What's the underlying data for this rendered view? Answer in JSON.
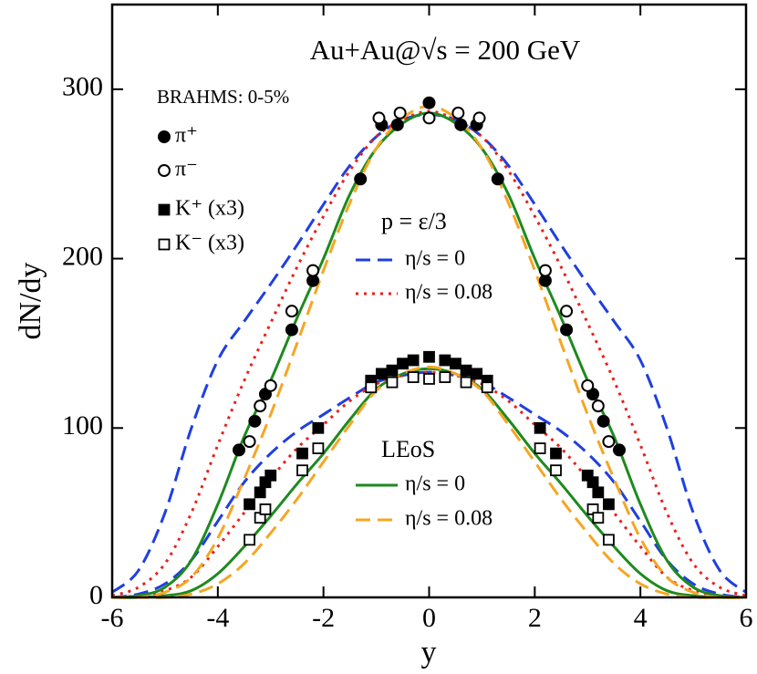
{
  "chart_data": {
    "type": "line",
    "title": "Au+Au@√s = 200 GeV",
    "annotations": {
      "experiment": "BRAHMS: 0-5%",
      "eos_ideal": "p = ε/3",
      "eos_lattice": "LEoS"
    },
    "xlabel": "y",
    "ylabel": "dN/dy",
    "xlim": [
      -6,
      6
    ],
    "ylim": [
      0,
      350
    ],
    "xticks": [
      -6,
      -4,
      -2,
      0,
      2,
      4,
      6
    ],
    "yticks": [
      0,
      100,
      200,
      300
    ],
    "points": [
      {
        "name": "π⁺",
        "marker": "circle",
        "filled": true,
        "x": [
          -3.6,
          -3.3,
          -3.1,
          -2.6,
          -2.2,
          -1.3,
          -0.9,
          -0.6,
          0,
          0.6,
          0.9,
          1.3,
          2.2,
          2.6,
          3.1,
          3.3,
          3.6
        ],
        "values": [
          87,
          104,
          120,
          158,
          187,
          247,
          279,
          279,
          292,
          279,
          279,
          247,
          187,
          158,
          120,
          104,
          87
        ]
      },
      {
        "name": "π⁻",
        "marker": "circle",
        "filled": false,
        "x": [
          -3.4,
          -3.2,
          -3.0,
          -2.6,
          -2.2,
          -0.95,
          -0.55,
          0,
          0.55,
          0.95,
          2.2,
          2.6,
          3.0,
          3.2,
          3.4
        ],
        "values": [
          92,
          113,
          125,
          169,
          193,
          283,
          286,
          283,
          286,
          283,
          193,
          169,
          125,
          113,
          92
        ]
      },
      {
        "name": "K⁺ (x3)",
        "marker": "square",
        "filled": true,
        "x": [
          -3.4,
          -3.2,
          -3.1,
          -3.0,
          -2.4,
          -2.1,
          -1.1,
          -0.9,
          -0.7,
          -0.5,
          -0.3,
          0,
          0.3,
          0.5,
          0.7,
          0.9,
          1.1,
          2.1,
          2.4,
          3.0,
          3.1,
          3.2,
          3.4
        ],
        "values": [
          55,
          62,
          68,
          72,
          85,
          100,
          128,
          132,
          134,
          138,
          140,
          142,
          140,
          138,
          134,
          132,
          128,
          100,
          85,
          72,
          68,
          62,
          55
        ]
      },
      {
        "name": "K⁻ (x3)",
        "marker": "square",
        "filled": false,
        "x": [
          -3.4,
          -3.2,
          -3.1,
          -2.4,
          -2.1,
          -1.1,
          -0.7,
          -0.3,
          0,
          0.3,
          0.7,
          1.1,
          2.1,
          2.4,
          3.1,
          3.2,
          3.4
        ],
        "values": [
          34,
          47,
          52,
          75,
          88,
          124,
          127,
          130,
          129,
          130,
          127,
          124,
          88,
          75,
          52,
          47,
          34
        ]
      }
    ],
    "curve_x": [
      -6,
      -5.5,
      -5,
      -4.5,
      -4,
      -3.5,
      -3,
      -2.5,
      -2,
      -1.5,
      -1,
      -0.5,
      0,
      0.5,
      1,
      1.5,
      2,
      2.5,
      3,
      3.5,
      4,
      4.5,
      5,
      5.5,
      6
    ],
    "series": [
      {
        "name": "η/s = 0",
        "color": "#1f3fe0",
        "dash": "dashed",
        "group": "eos_ideal",
        "values": [
          3,
          16,
          50,
          100,
          140,
          163,
          185,
          208,
          232,
          255,
          272,
          282,
          285,
          282,
          272,
          255,
          232,
          208,
          185,
          163,
          140,
          100,
          50,
          16,
          3
        ],
        "kaon_values": [
          0,
          2,
          8,
          22,
          45,
          68,
          85,
          98,
          108,
          118,
          127,
          131,
          133,
          131,
          127,
          118,
          108,
          98,
          85,
          68,
          45,
          22,
          8,
          2,
          0
        ]
      },
      {
        "name": "η/s = 0.08",
        "color": "#e8201c",
        "dash": "dotted",
        "group": "eos_ideal",
        "values": [
          1,
          6,
          20,
          50,
          90,
          128,
          162,
          195,
          225,
          252,
          272,
          282,
          287,
          282,
          272,
          252,
          225,
          195,
          162,
          128,
          90,
          50,
          20,
          6,
          1
        ],
        "kaon_values": [
          0,
          1,
          4,
          12,
          30,
          50,
          70,
          88,
          102,
          116,
          126,
          131,
          133,
          131,
          126,
          116,
          102,
          88,
          70,
          50,
          30,
          12,
          4,
          1,
          0
        ]
      },
      {
        "name": "η/s = 0",
        "color": "#1e8a1e",
        "dash": "solid",
        "group": "eos_lattice",
        "values": [
          0,
          1,
          6,
          22,
          55,
          95,
          128,
          165,
          200,
          238,
          265,
          280,
          286,
          280,
          265,
          238,
          200,
          165,
          128,
          95,
          55,
          22,
          6,
          1,
          0
        ],
        "kaon_values": [
          0,
          0,
          1,
          4,
          14,
          30,
          48,
          67,
          85,
          105,
          123,
          132,
          135,
          132,
          123,
          105,
          85,
          67,
          48,
          30,
          14,
          4,
          1,
          0,
          0
        ]
      },
      {
        "name": "η/s = 0.08",
        "color": "#f5a623",
        "dash": "dashed",
        "group": "eos_lattice",
        "values": [
          0,
          0,
          3,
          12,
          35,
          70,
          108,
          150,
          193,
          233,
          265,
          283,
          290,
          283,
          265,
          233,
          193,
          150,
          108,
          70,
          35,
          12,
          3,
          0,
          0
        ],
        "kaon_values": [
          0,
          0,
          0,
          2,
          8,
          20,
          38,
          58,
          80,
          102,
          122,
          132,
          136,
          132,
          122,
          102,
          80,
          58,
          38,
          20,
          8,
          2,
          0,
          0,
          0
        ]
      }
    ]
  }
}
